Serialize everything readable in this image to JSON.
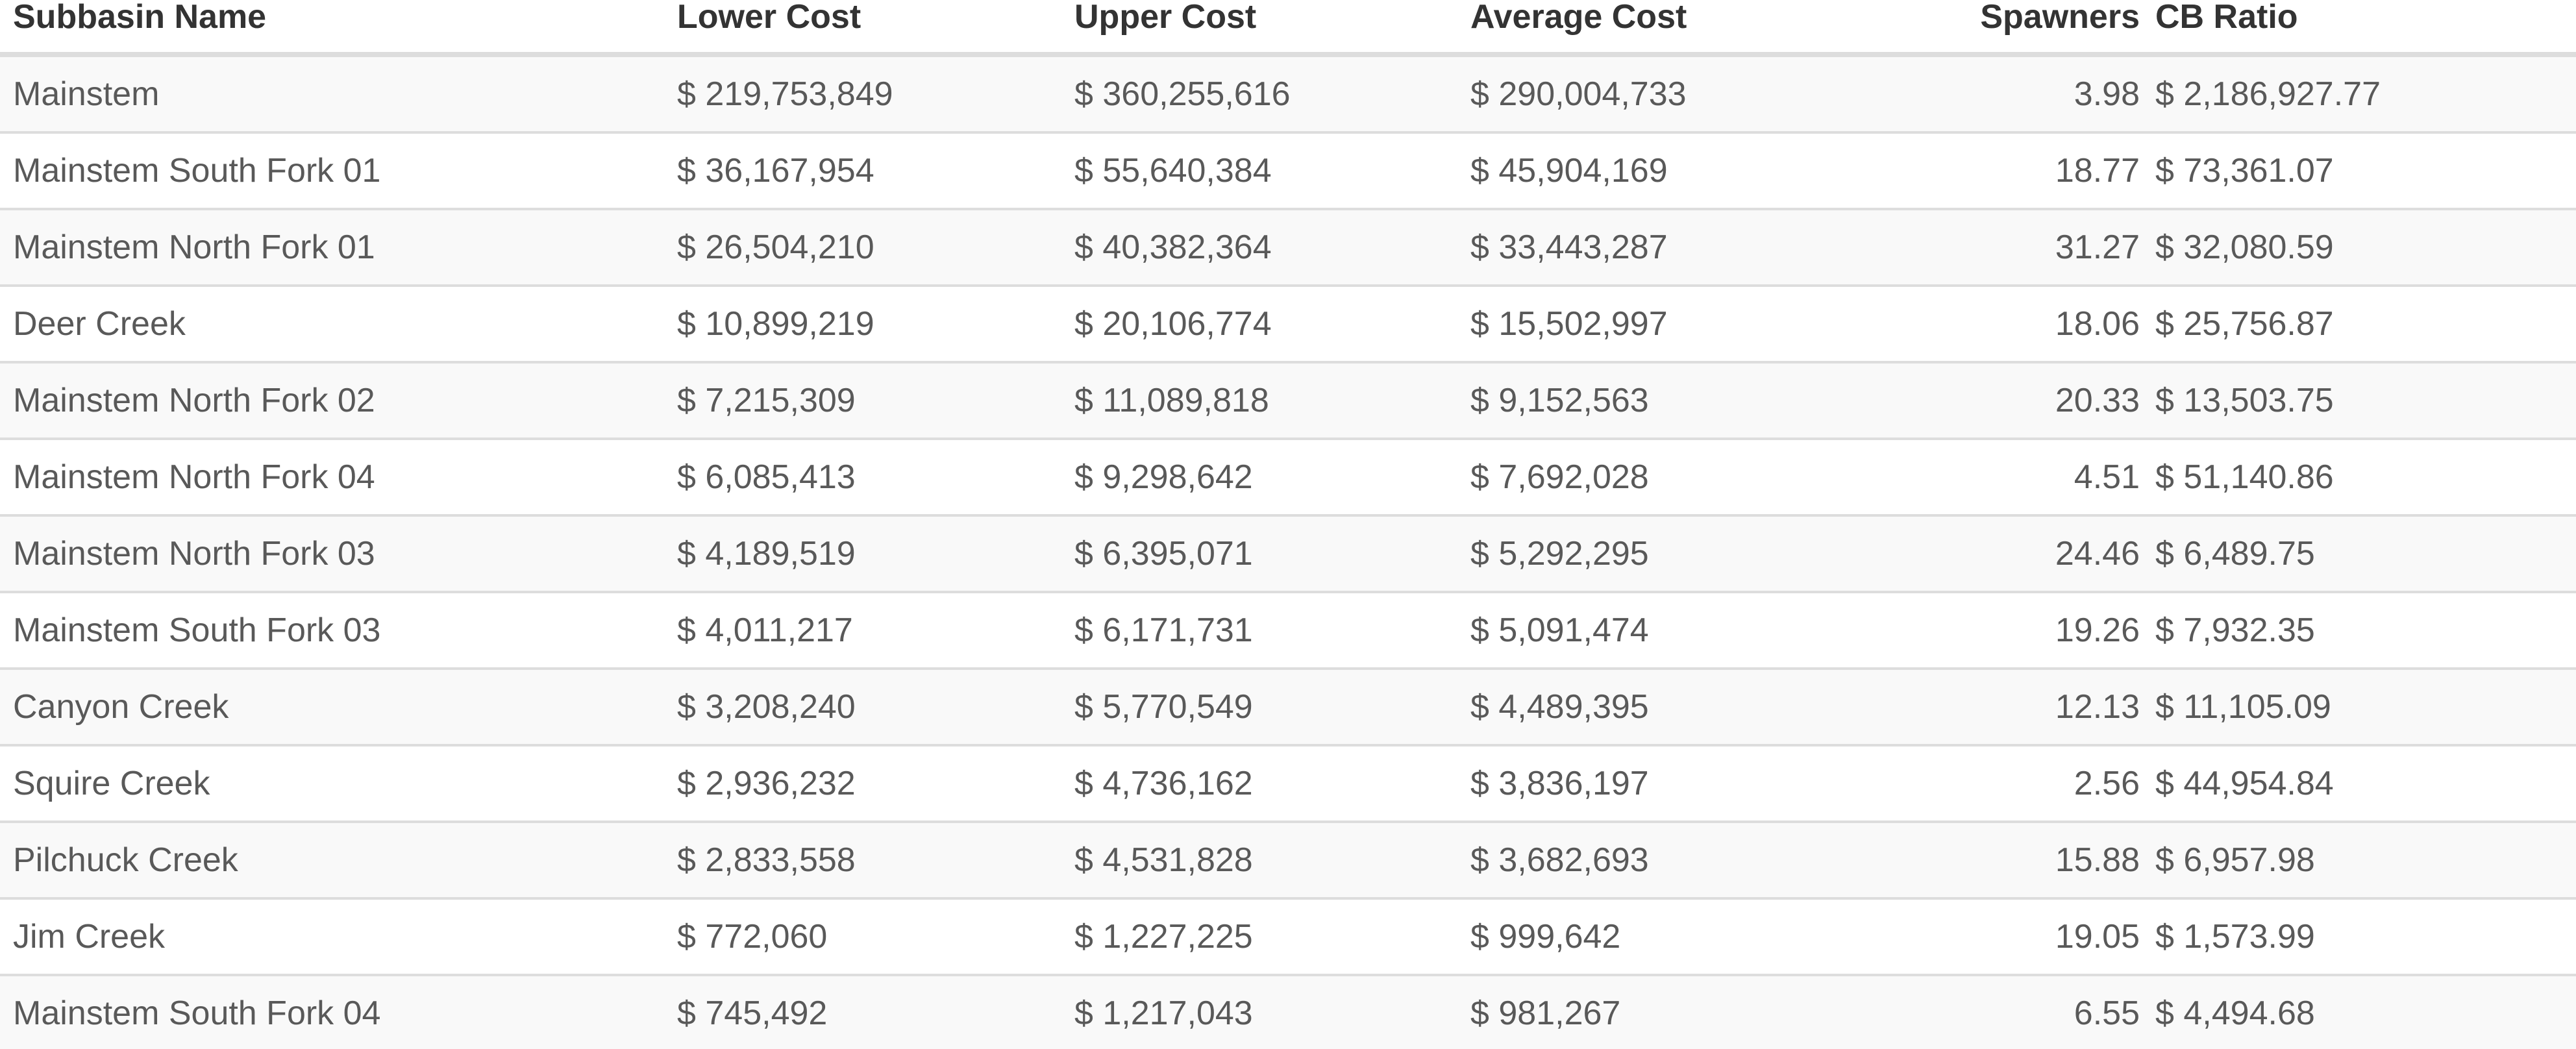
{
  "table": {
    "headers": {
      "name": "Subbasin Name",
      "lower": "Lower Cost",
      "upper": "Upper Cost",
      "average": "Average Cost",
      "spawners": "Spawners",
      "cb_ratio": "CB Ratio"
    },
    "rows": [
      {
        "name": "Mainstem",
        "lower": "$ 219,753,849",
        "upper": "$ 360,255,616",
        "average": "$ 290,004,733",
        "spawners": "3.98",
        "cb_ratio": "$ 2,186,927.77"
      },
      {
        "name": "Mainstem South Fork 01",
        "lower": "$ 36,167,954",
        "upper": "$ 55,640,384",
        "average": "$ 45,904,169",
        "spawners": "18.77",
        "cb_ratio": "$ 73,361.07"
      },
      {
        "name": "Mainstem North Fork 01",
        "lower": "$ 26,504,210",
        "upper": "$ 40,382,364",
        "average": "$ 33,443,287",
        "spawners": "31.27",
        "cb_ratio": "$ 32,080.59"
      },
      {
        "name": "Deer Creek",
        "lower": "$ 10,899,219",
        "upper": "$ 20,106,774",
        "average": "$ 15,502,997",
        "spawners": "18.06",
        "cb_ratio": "$ 25,756.87"
      },
      {
        "name": "Mainstem North Fork 02",
        "lower": "$ 7,215,309",
        "upper": "$ 11,089,818",
        "average": "$ 9,152,563",
        "spawners": "20.33",
        "cb_ratio": "$ 13,503.75"
      },
      {
        "name": "Mainstem North Fork 04",
        "lower": "$ 6,085,413",
        "upper": "$ 9,298,642",
        "average": "$ 7,692,028",
        "spawners": "4.51",
        "cb_ratio": "$ 51,140.86"
      },
      {
        "name": "Mainstem North Fork 03",
        "lower": "$ 4,189,519",
        "upper": "$ 6,395,071",
        "average": "$ 5,292,295",
        "spawners": "24.46",
        "cb_ratio": "$ 6,489.75"
      },
      {
        "name": "Mainstem South Fork 03",
        "lower": "$ 4,011,217",
        "upper": "$ 6,171,731",
        "average": "$ 5,091,474",
        "spawners": "19.26",
        "cb_ratio": "$ 7,932.35"
      },
      {
        "name": "Canyon Creek",
        "lower": "$ 3,208,240",
        "upper": "$ 5,770,549",
        "average": "$ 4,489,395",
        "spawners": "12.13",
        "cb_ratio": "$ 11,105.09"
      },
      {
        "name": "Squire Creek",
        "lower": "$ 2,936,232",
        "upper": "$ 4,736,162",
        "average": "$ 3,836,197",
        "spawners": "2.56",
        "cb_ratio": "$ 44,954.84"
      },
      {
        "name": "Pilchuck Creek",
        "lower": "$ 2,833,558",
        "upper": "$ 4,531,828",
        "average": "$ 3,682,693",
        "spawners": "15.88",
        "cb_ratio": "$ 6,957.98"
      },
      {
        "name": "Jim Creek",
        "lower": "$ 772,060",
        "upper": "$ 1,227,225",
        "average": "$ 999,642",
        "spawners": "19.05",
        "cb_ratio": "$ 1,573.99"
      },
      {
        "name": "Mainstem South Fork 04",
        "lower": "$ 745,492",
        "upper": "$ 1,217,043",
        "average": "$ 981,267",
        "spawners": "6.55",
        "cb_ratio": "$ 4,494.68"
      }
    ]
  },
  "colors": {
    "header_text": "#333333",
    "cell_text": "#595959",
    "row_stripe": "#f9f9f9",
    "border": "#dddddd"
  }
}
